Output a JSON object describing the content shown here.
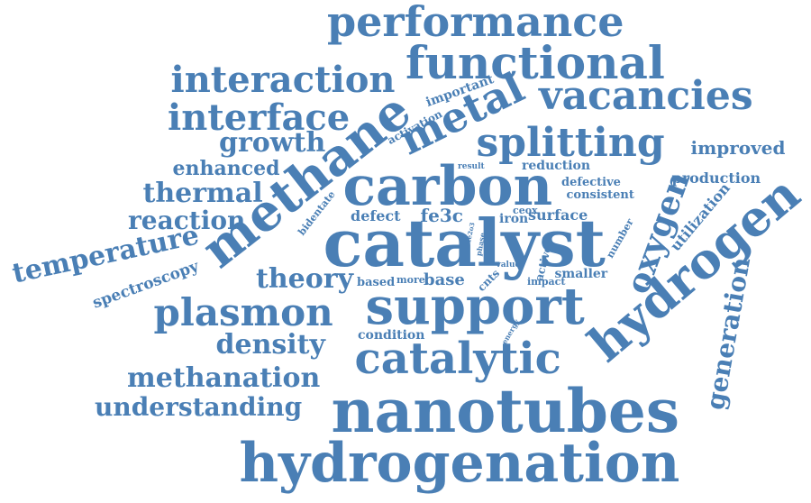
{
  "color": "#4a7fb5",
  "words": [
    "performance",
    "functional",
    "interaction",
    "vacancies",
    "interface",
    "metal",
    "methane",
    "important",
    "activation",
    "splitting",
    "growth",
    "improved",
    "enhanced",
    "carbon",
    "result",
    "reduction",
    "thermal",
    "production",
    "defective",
    "consistent",
    "bidentate",
    "oxygen",
    "hydrogen",
    "reaction",
    "defect",
    "fe3c",
    "ceox",
    "iron",
    "surface",
    "utilization",
    "catalyst",
    "temperature",
    "fe2o3",
    "phase",
    "number",
    "value",
    "active",
    "spectroscopy",
    "theory",
    "based",
    "more",
    "base",
    "cnts",
    "impact",
    "smaller",
    "plasmon",
    "support",
    "density",
    "condition",
    "energy",
    "catalytic",
    "generation",
    "methanation",
    "understanding",
    "nanotubes",
    "hydrogenation"
  ]
}
